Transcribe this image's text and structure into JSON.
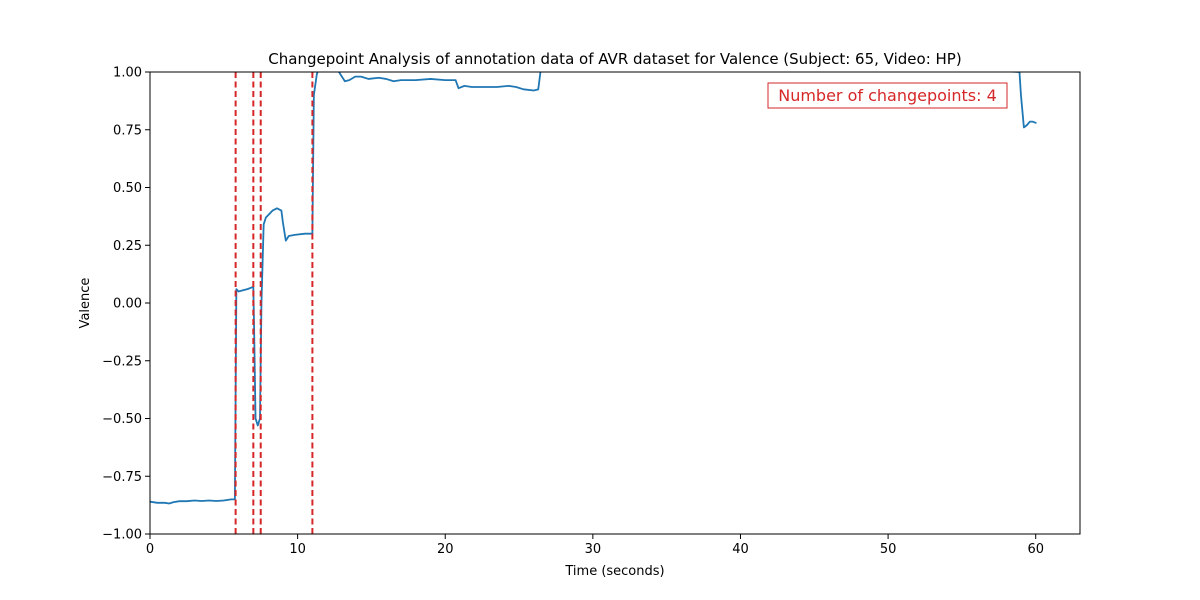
{
  "chart_data": {
    "type": "line",
    "title": "Changepoint Analysis of annotation data of AVR dataset for Valence (Subject: 65, Video: HP)",
    "xlabel": "Time (seconds)",
    "ylabel": "Valence",
    "xlim": [
      0,
      63
    ],
    "ylim": [
      -1.0,
      1.0
    ],
    "x_ticks": [
      0,
      10,
      20,
      30,
      40,
      50,
      60
    ],
    "x_tick_labels": [
      "0",
      "10",
      "20",
      "30",
      "40",
      "50",
      "60"
    ],
    "y_ticks": [
      1.0,
      0.75,
      0.5,
      0.25,
      0.0,
      -0.25,
      -0.5,
      -0.75,
      -1.0
    ],
    "y_tick_labels": [
      "1.00",
      "0.75",
      "0.50",
      "0.25",
      "0.00",
      "−0.25",
      "−0.50",
      "−0.75",
      "−1.00"
    ],
    "grid": false,
    "series": [
      {
        "color": "#1f77b4",
        "x": [
          0,
          0.5,
          1.0,
          1.3,
          1.6,
          2.0,
          2.5,
          3.0,
          3.5,
          4.0,
          4.5,
          5.0,
          5.5,
          5.75,
          5.85,
          6.0,
          6.3,
          6.6,
          7.0,
          7.05,
          7.15,
          7.3,
          7.45,
          7.55,
          7.7,
          7.85,
          8.0,
          8.3,
          8.6,
          8.9,
          9.0,
          9.2,
          9.4,
          9.8,
          10.5,
          10.95,
          11.0,
          11.1,
          11.3,
          11.6,
          12.0,
          12.5,
          12.8,
          13.2,
          13.5,
          13.9,
          14.3,
          14.8,
          15.5,
          16.0,
          16.5,
          17.0,
          17.5,
          18.0,
          19.0,
          20.0,
          20.7,
          20.9,
          21.3,
          21.8,
          22.5,
          23.5,
          24.3,
          24.8,
          25.3,
          26.0,
          26.3,
          26.45,
          26.6,
          58.9,
          59.0,
          59.2,
          59.4,
          59.6,
          59.8,
          60.0
        ],
        "y": [
          -0.86,
          -0.865,
          -0.865,
          -0.868,
          -0.862,
          -0.858,
          -0.858,
          -0.855,
          -0.857,
          -0.855,
          -0.857,
          -0.855,
          -0.85,
          -0.85,
          0.06,
          0.05,
          0.055,
          0.06,
          0.07,
          -0.1,
          -0.5,
          -0.53,
          -0.5,
          0.0,
          0.34,
          0.37,
          0.38,
          0.4,
          0.41,
          0.4,
          0.35,
          0.27,
          0.29,
          0.295,
          0.3,
          0.3,
          0.3,
          0.9,
          0.99,
          1.05,
          1.1,
          1.05,
          1.0,
          0.96,
          0.965,
          0.98,
          0.98,
          0.97,
          0.975,
          0.97,
          0.96,
          0.965,
          0.965,
          0.965,
          0.97,
          0.965,
          0.965,
          0.93,
          0.94,
          0.935,
          0.935,
          0.935,
          0.94,
          0.935,
          0.925,
          0.92,
          0.925,
          1.0,
          1.1,
          1.0,
          0.9,
          0.76,
          0.77,
          0.785,
          0.785,
          0.78
        ]
      }
    ],
    "changepoints": {
      "color": "#d62728",
      "x": [
        5.8,
        7.0,
        7.5,
        11.0
      ]
    },
    "annotation": {
      "text": "Number of changepoints: 4",
      "color": "#d62728",
      "placement": "top-right"
    }
  }
}
